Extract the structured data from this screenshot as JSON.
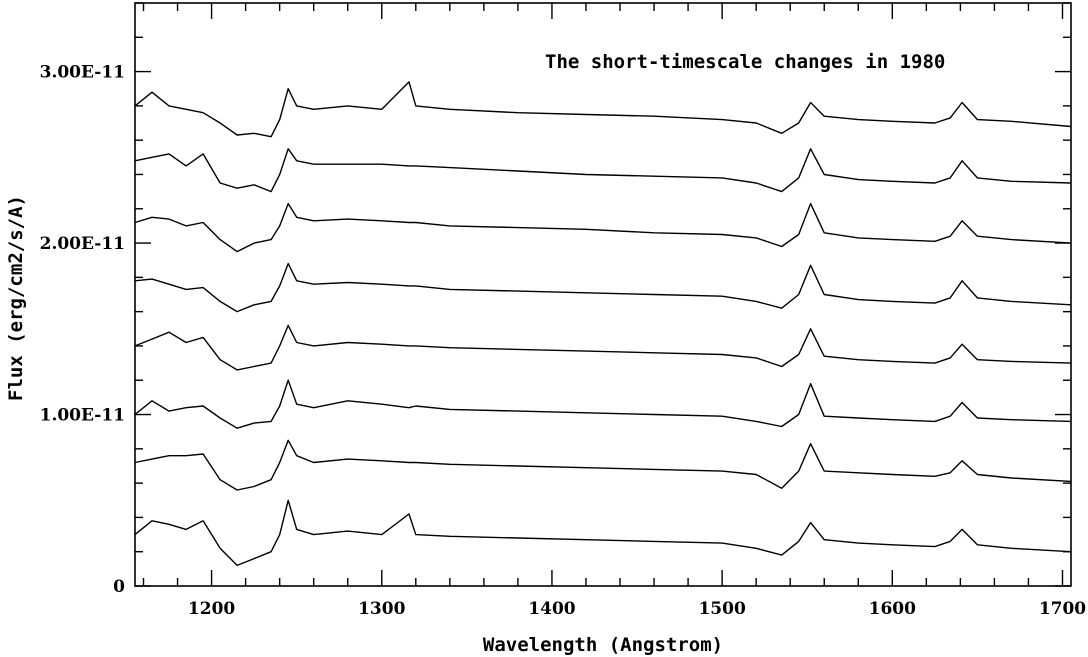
{
  "chart_data": {
    "type": "line",
    "title": "The short-timescale changes in 1980",
    "xlabel": "Wavelength (Angstrom)",
    "ylabel": "Flux (erg/cm2/s/A)",
    "xlim": [
      1155,
      1705
    ],
    "ylim": [
      0,
      3.4e-11
    ],
    "x_ticks": [
      1200,
      1300,
      1400,
      1500,
      1600,
      1700
    ],
    "x_tick_labels": [
      "1200",
      "1300",
      "1400",
      "1500",
      "1600",
      "1700"
    ],
    "y_ticks": [
      0,
      1e-11,
      2e-11,
      3e-11
    ],
    "y_tick_labels": [
      "0",
      "1.00E-11",
      "2.00E-11",
      "3.00E-11"
    ],
    "grid": false,
    "x": [
      1155,
      1165,
      1175,
      1185,
      1195,
      1205,
      1215,
      1225,
      1235,
      1240,
      1245,
      1250,
      1260,
      1280,
      1300,
      1316,
      1320,
      1340,
      1380,
      1420,
      1460,
      1500,
      1520,
      1535,
      1545,
      1552,
      1560,
      1580,
      1600,
      1625,
      1634,
      1641,
      1650,
      1670,
      1705
    ],
    "series": [
      {
        "values": [
          2.8e-11,
          2.88e-11,
          2.8e-11,
          2.78e-11,
          2.76e-11,
          2.7e-11,
          2.63e-11,
          2.64e-11,
          2.62e-11,
          2.72e-11,
          2.9e-11,
          2.8e-11,
          2.78e-11,
          2.8e-11,
          2.78e-11,
          2.94e-11,
          2.8e-11,
          2.78e-11,
          2.76e-11,
          2.75e-11,
          2.74e-11,
          2.72e-11,
          2.7e-11,
          2.64e-11,
          2.7e-11,
          2.82e-11,
          2.74e-11,
          2.72e-11,
          2.71e-11,
          2.7e-11,
          2.73e-11,
          2.82e-11,
          2.72e-11,
          2.71e-11,
          2.68e-11
        ]
      },
      {
        "values": [
          2.48e-11,
          2.5e-11,
          2.52e-11,
          2.45e-11,
          2.52e-11,
          2.35e-11,
          2.32e-11,
          2.34e-11,
          2.3e-11,
          2.4e-11,
          2.55e-11,
          2.48e-11,
          2.46e-11,
          2.46e-11,
          2.46e-11,
          2.45e-11,
          2.45e-11,
          2.44e-11,
          2.42e-11,
          2.4e-11,
          2.39e-11,
          2.38e-11,
          2.35e-11,
          2.3e-11,
          2.38e-11,
          2.55e-11,
          2.4e-11,
          2.37e-11,
          2.36e-11,
          2.35e-11,
          2.38e-11,
          2.48e-11,
          2.38e-11,
          2.36e-11,
          2.35e-11
        ]
      },
      {
        "values": [
          2.12e-11,
          2.15e-11,
          2.14e-11,
          2.1e-11,
          2.12e-11,
          2.02e-11,
          1.95e-11,
          2e-11,
          2.02e-11,
          2.1e-11,
          2.23e-11,
          2.15e-11,
          2.13e-11,
          2.14e-11,
          2.13e-11,
          2.12e-11,
          2.12e-11,
          2.1e-11,
          2.09e-11,
          2.08e-11,
          2.06e-11,
          2.05e-11,
          2.03e-11,
          1.98e-11,
          2.05e-11,
          2.23e-11,
          2.06e-11,
          2.03e-11,
          2.02e-11,
          2.01e-11,
          2.04e-11,
          2.13e-11,
          2.04e-11,
          2.02e-11,
          2e-11
        ]
      },
      {
        "values": [
          1.78e-11,
          1.79e-11,
          1.76e-11,
          1.73e-11,
          1.74e-11,
          1.66e-11,
          1.6e-11,
          1.64e-11,
          1.66e-11,
          1.75e-11,
          1.88e-11,
          1.78e-11,
          1.76e-11,
          1.77e-11,
          1.76e-11,
          1.75e-11,
          1.75e-11,
          1.73e-11,
          1.72e-11,
          1.71e-11,
          1.7e-11,
          1.69e-11,
          1.66e-11,
          1.62e-11,
          1.7e-11,
          1.87e-11,
          1.7e-11,
          1.67e-11,
          1.66e-11,
          1.65e-11,
          1.68e-11,
          1.78e-11,
          1.68e-11,
          1.66e-11,
          1.64e-11
        ]
      },
      {
        "values": [
          1.4e-11,
          1.44e-11,
          1.48e-11,
          1.42e-11,
          1.45e-11,
          1.32e-11,
          1.26e-11,
          1.28e-11,
          1.3e-11,
          1.4e-11,
          1.52e-11,
          1.42e-11,
          1.4e-11,
          1.42e-11,
          1.41e-11,
          1.4e-11,
          1.4e-11,
          1.39e-11,
          1.38e-11,
          1.37e-11,
          1.36e-11,
          1.35e-11,
          1.33e-11,
          1.28e-11,
          1.35e-11,
          1.5e-11,
          1.34e-11,
          1.32e-11,
          1.31e-11,
          1.3e-11,
          1.33e-11,
          1.41e-11,
          1.32e-11,
          1.31e-11,
          1.3e-11
        ]
      },
      {
        "values": [
          1e-11,
          1.08e-11,
          1.02e-11,
          1.04e-11,
          1.05e-11,
          9.8e-12,
          9.2e-12,
          9.5e-12,
          9.6e-12,
          1.05e-11,
          1.2e-11,
          1.06e-11,
          1.04e-11,
          1.08e-11,
          1.06e-11,
          1.04e-11,
          1.05e-11,
          1.03e-11,
          1.02e-11,
          1.01e-11,
          1e-11,
          9.9e-12,
          9.6e-12,
          9.3e-12,
          1e-11,
          1.18e-11,
          9.9e-12,
          9.8e-12,
          9.7e-12,
          9.6e-12,
          9.9e-12,
          1.07e-11,
          9.8e-12,
          9.7e-12,
          9.6e-12
        ]
      },
      {
        "values": [
          7.2e-12,
          7.4e-12,
          7.6e-12,
          7.6e-12,
          7.7e-12,
          6.2e-12,
          5.6e-12,
          5.8e-12,
          6.2e-12,
          7.2e-12,
          8.5e-12,
          7.6e-12,
          7.2e-12,
          7.4e-12,
          7.3e-12,
          7.2e-12,
          7.2e-12,
          7.1e-12,
          7e-12,
          6.9e-12,
          6.8e-12,
          6.7e-12,
          6.5e-12,
          5.7e-12,
          6.7e-12,
          8.3e-12,
          6.7e-12,
          6.6e-12,
          6.5e-12,
          6.4e-12,
          6.6e-12,
          7.3e-12,
          6.5e-12,
          6.3e-12,
          6.1e-12
        ]
      },
      {
        "values": [
          3e-12,
          3.8e-12,
          3.6e-12,
          3.3e-12,
          3.8e-12,
          2.2e-12,
          1.2e-12,
          1.6e-12,
          2e-12,
          3e-12,
          5e-12,
          3.3e-12,
          3e-12,
          3.2e-12,
          3e-12,
          4.2e-12,
          3e-12,
          2.9e-12,
          2.8e-12,
          2.7e-12,
          2.6e-12,
          2.5e-12,
          2.2e-12,
          1.8e-12,
          2.6e-12,
          3.7e-12,
          2.7e-12,
          2.5e-12,
          2.4e-12,
          2.3e-12,
          2.6e-12,
          3.3e-12,
          2.4e-12,
          2.2e-12,
          2e-12
        ]
      }
    ]
  }
}
